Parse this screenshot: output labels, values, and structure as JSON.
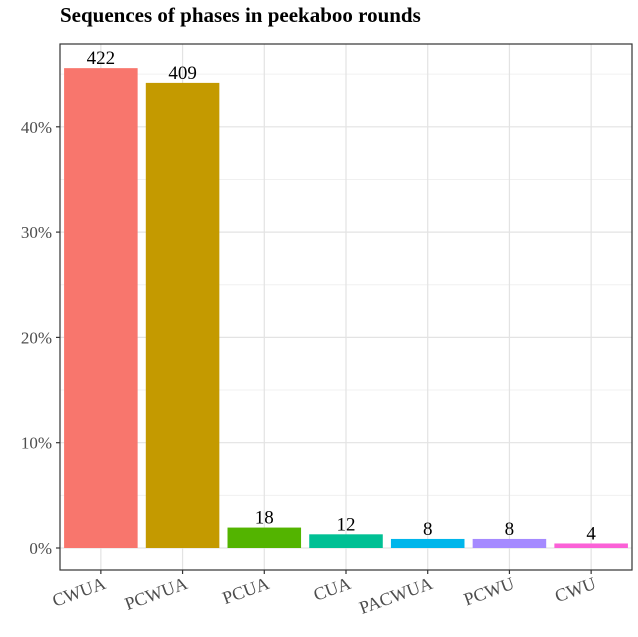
{
  "chart_data": {
    "type": "bar",
    "title": "Sequences of phases in peekaboo rounds",
    "xlabel": "",
    "ylabel": "",
    "categories": [
      "CWUA",
      "PCWUA",
      "PCUA",
      "CUA",
      "PACWUA",
      "PCWU",
      "CWU"
    ],
    "counts": [
      422,
      409,
      18,
      12,
      8,
      8,
      4
    ],
    "values": [
      0.4557,
      0.4417,
      0.0194,
      0.013,
      0.0086,
      0.0086,
      0.0043
    ],
    "colors": [
      "#F8766D",
      "#C49A00",
      "#53B400",
      "#00C094",
      "#00B6EB",
      "#A58AFF",
      "#FB61D7"
    ],
    "ylim": [
      0,
      0.48
    ],
    "yticks": [
      0,
      0.1,
      0.2,
      0.3,
      0.4
    ],
    "ytick_labels": [
      "0%",
      "10%",
      "20%",
      "30%",
      "40%"
    ],
    "grid": true
  }
}
